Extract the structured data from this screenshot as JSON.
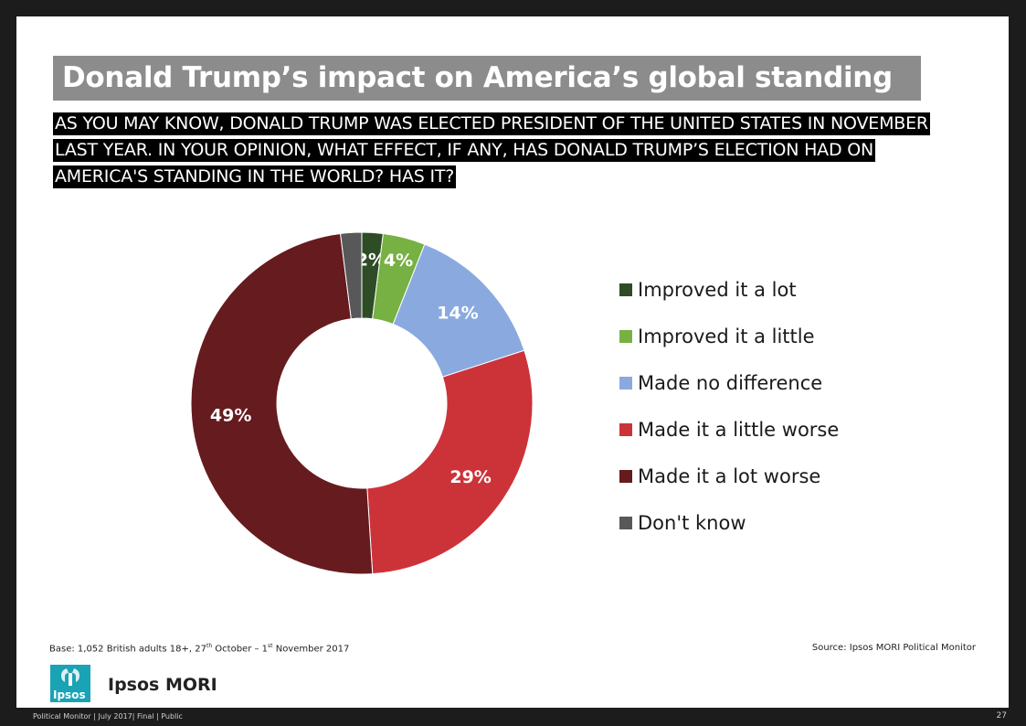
{
  "header": {
    "title": "Donald Trump’s impact on America’s global standing",
    "question": "AS YOU MAY KNOW, DONALD TRUMP WAS ELECTED PRESIDENT OF THE UNITED STATES IN NOVEMBER LAST YEAR. IN YOUR OPINION, WHAT EFFECT, IF ANY, HAS DONALD TRUMP’S ELECTION HAD ON AMERICA'S STANDING IN THE WORLD? HAS IT?"
  },
  "chart_data": {
    "type": "pie",
    "variant": "donut",
    "title": "",
    "categories": [
      "Improved it a lot",
      "Improved it a little",
      "Made no difference",
      "Made it a little worse",
      "Made it a lot worse",
      "Don't know"
    ],
    "values": [
      2,
      4,
      14,
      29,
      49,
      2
    ],
    "value_labels": [
      "2%",
      "4%",
      "14%",
      "29%",
      "49%",
      ""
    ],
    "colors": [
      "#2e4d26",
      "#77b043",
      "#8aaadf",
      "#cc3339",
      "#661b1e",
      "#58585a"
    ],
    "legend_position": "right"
  },
  "notes": {
    "base_prefix": "Base: 1,052 British adults 18+,  27",
    "base_sup1": "th",
    "base_mid": " October – 1",
    "base_sup2": "st",
    "base_suffix": " November 2017",
    "source": "Source: Ipsos MORI Political Monitor"
  },
  "branding": {
    "logo_text": "Ipsos",
    "company": "Ipsos MORI",
    "logo_color": "#19a3b5"
  },
  "footer": {
    "left": "Political Monitor | July 2017| Final | Public",
    "page_number": "27"
  }
}
